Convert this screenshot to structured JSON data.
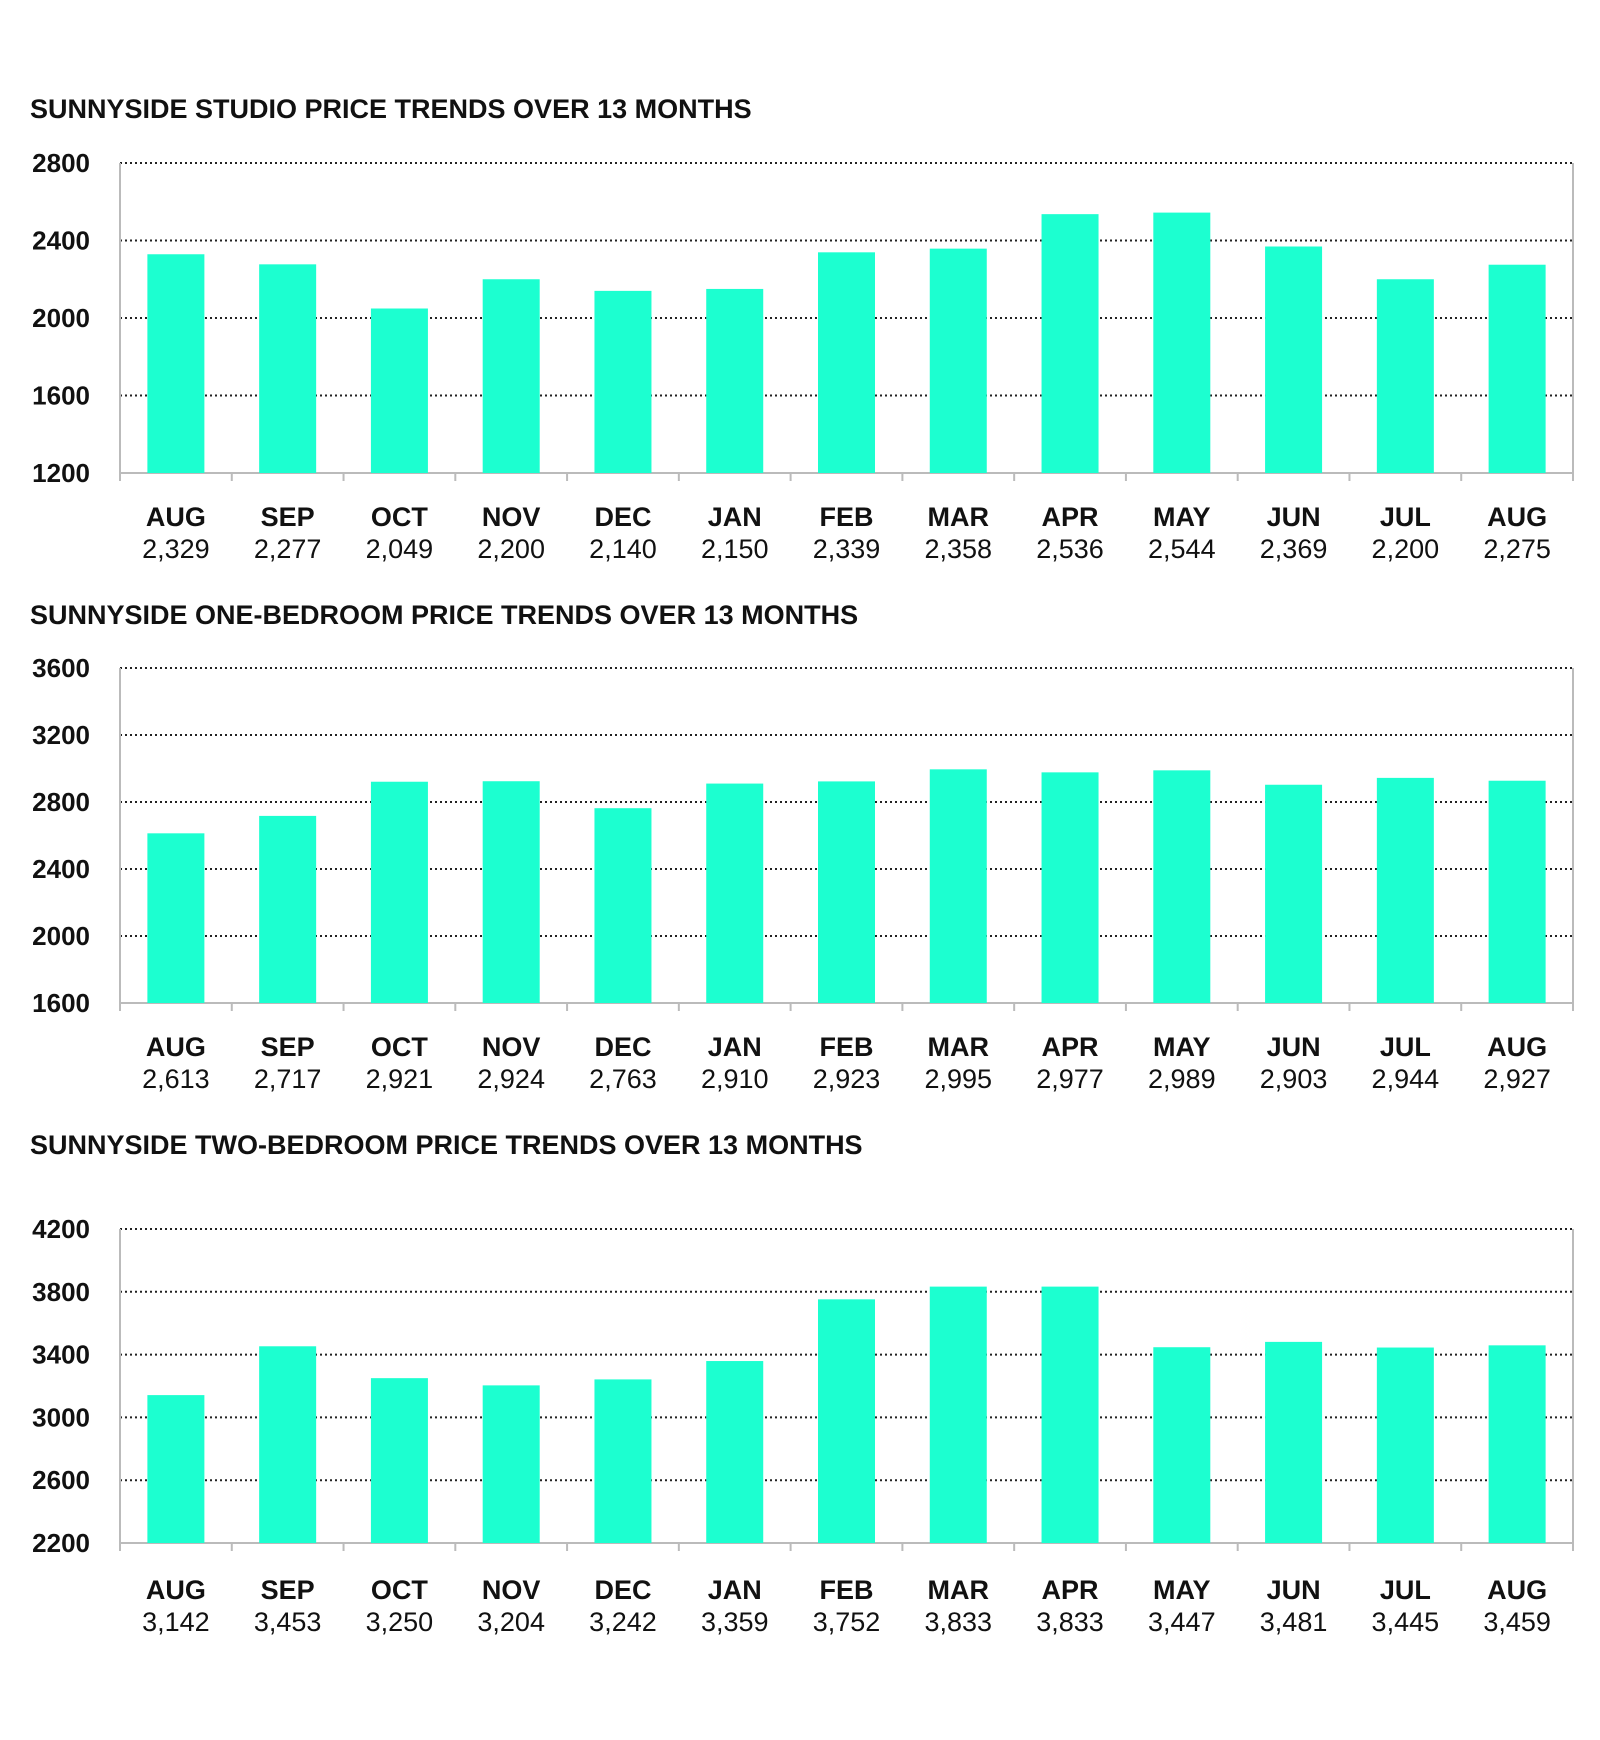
{
  "colors": {
    "bar": "#1cffd0",
    "grid": "#222222",
    "axis": "#bbbbbb"
  },
  "chart_data": [
    {
      "type": "bar",
      "title": "SUNNYSIDE STUDIO PRICE TRENDS OVER 13 MONTHS",
      "categories": [
        "AUG",
        "SEP",
        "OCT",
        "NOV",
        "DEC",
        "JAN",
        "FEB",
        "MAR",
        "APR",
        "MAY",
        "JUN",
        "JUL",
        "AUG"
      ],
      "value_labels": [
        "2,329",
        "2,277",
        "2,049",
        "2,200",
        "2,140",
        "2,150",
        "2,339",
        "2,358",
        "2,536",
        "2,544",
        "2,369",
        "2,200",
        "2,275"
      ],
      "values": [
        2329,
        2277,
        2049,
        2200,
        2140,
        2150,
        2339,
        2358,
        2536,
        2544,
        2369,
        2200,
        2275
      ],
      "ylim": [
        1200,
        2800
      ],
      "yticks": [
        "1200",
        "1600",
        "2000",
        "2400",
        "2800"
      ],
      "grid": true
    },
    {
      "type": "bar",
      "title": "SUNNYSIDE ONE-BEDROOM PRICE TRENDS OVER 13 MONTHS",
      "categories": [
        "AUG",
        "SEP",
        "OCT",
        "NOV",
        "DEC",
        "JAN",
        "FEB",
        "MAR",
        "APR",
        "MAY",
        "JUN",
        "JUL",
        "AUG"
      ],
      "value_labels": [
        "2,613",
        "2,717",
        "2,921",
        "2,924",
        "2,763",
        "2,910",
        "2,923",
        "2,995",
        "2,977",
        "2,989",
        "2,903",
        "2,944",
        "2,927"
      ],
      "values": [
        2613,
        2717,
        2921,
        2924,
        2763,
        2910,
        2923,
        2995,
        2977,
        2989,
        2903,
        2944,
        2927
      ],
      "ylim": [
        1600,
        3600
      ],
      "yticks": [
        "1600",
        "2000",
        "2400",
        "2800",
        "3200",
        "3600"
      ],
      "grid": true
    },
    {
      "type": "bar",
      "title": "SUNNYSIDE TWO-BEDROOM PRICE TRENDS OVER 13 MONTHS",
      "categories": [
        "AUG",
        "SEP",
        "OCT",
        "NOV",
        "DEC",
        "JAN",
        "FEB",
        "MAR",
        "APR",
        "MAY",
        "JUN",
        "JUL",
        "AUG"
      ],
      "value_labels": [
        "3,142",
        "3,453",
        "3,250",
        "3,204",
        "3,242",
        "3,359",
        "3,752",
        "3,833",
        "3,833",
        "3,447",
        "3,481",
        "3,445",
        "3,459"
      ],
      "values": [
        3142,
        3453,
        3250,
        3204,
        3242,
        3359,
        3752,
        3833,
        3833,
        3447,
        3481,
        3445,
        3459
      ],
      "ylim": [
        2200,
        4200
      ],
      "yticks": [
        "2200",
        "2600",
        "3000",
        "3400",
        "3800",
        "4200"
      ],
      "grid": true
    }
  ]
}
